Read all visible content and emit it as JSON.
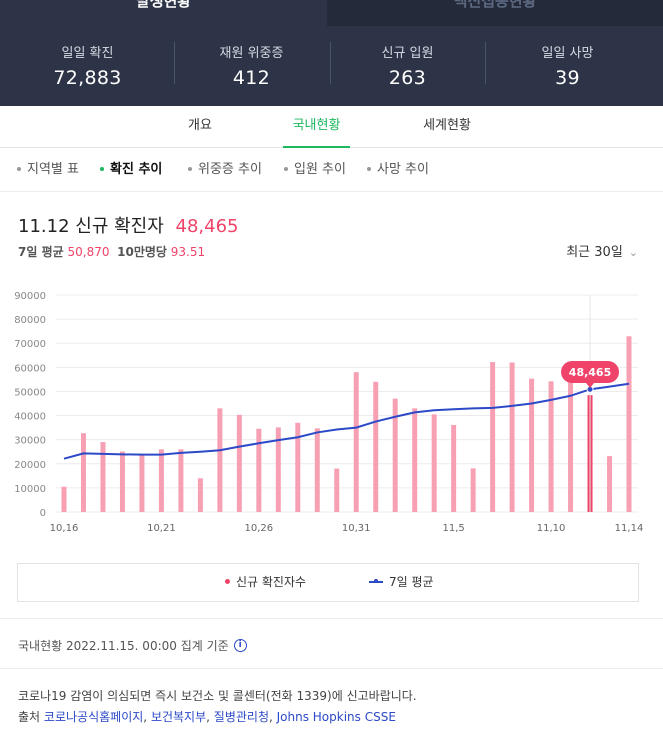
{
  "top_tabs": [
    "발생현황",
    "백신접종현황"
  ],
  "stats": [
    {
      "label": "일일 확진",
      "value": "72,883"
    },
    {
      "label": "재원 위중증",
      "value": "412"
    },
    {
      "label": "신규 입원",
      "value": "263"
    },
    {
      "label": "일일 사망",
      "value": "39"
    }
  ],
  "tabs": [
    "개요",
    "국내현황",
    "세계현황"
  ],
  "active_tab": "국내현황",
  "subtabs": [
    "지역별 표",
    "확진 추이",
    "위중증 추이",
    "입원 추이",
    "사망 추이"
  ],
  "active_subtab": "확진 추이",
  "headline": {
    "date": "11.12",
    "label": "신규 확진자",
    "value": "48,465"
  },
  "subline": {
    "avg_label": "7일 평균",
    "avg_value": "50,870",
    "per_label": "10만명당",
    "per_value": "93.51"
  },
  "period": "최근 30일",
  "legend": {
    "bar": "신규 확진자수",
    "line": "7일 평균"
  },
  "basis": "국내현황 2022.11.15. 00:00 집계 기준",
  "note": "코로나19 감염이 의심되면 즉시 보건소 및 콜센터(전화 1339)에 신고바랍니다.",
  "source": {
    "prefix": "출처",
    "links": [
      "코로나공식홈페이지",
      "보건복지부",
      "질병관리청",
      "Johns Hopkins CSSE"
    ]
  },
  "colors": {
    "bar": "#f7a0b4",
    "bar_selected": "#f0436a",
    "line": "#2c49c8",
    "accent": "#1db85f",
    "header_bg": "#2d3447"
  },
  "chart_data": {
    "type": "bar",
    "categories": [
      "10.16",
      "10.17",
      "10.18",
      "10.19",
      "10.20",
      "10.21",
      "10.22",
      "10.23",
      "10.24",
      "10.25",
      "10.26",
      "10.27",
      "10.28",
      "10.29",
      "10.30",
      "10.31",
      "11.1",
      "11.2",
      "11.3",
      "11.4",
      "11.5",
      "11.6",
      "11.7",
      "11.8",
      "11.9",
      "11.10",
      "11.11",
      "11.12",
      "11.13",
      "11.14"
    ],
    "tick_labels": [
      "10.16",
      "10.21",
      "10.26",
      "10.31",
      "11.5",
      "11.10",
      "11.14"
    ],
    "series": [
      {
        "name": "신규 확진자수",
        "type": "bar",
        "values": [
          10500,
          32700,
          29000,
          25100,
          24200,
          26000,
          26000,
          14000,
          43000,
          40300,
          34500,
          35100,
          37000,
          34700,
          18000,
          58000,
          54000,
          47000,
          43000,
          40500,
          36100,
          18100,
          62200,
          62000,
          55300,
          54200,
          55000,
          48465,
          23200,
          72883
        ]
      },
      {
        "name": "7일 평균",
        "type": "line",
        "values": [
          22100,
          24300,
          24100,
          23900,
          23800,
          23800,
          24500,
          25000,
          25600,
          27100,
          28500,
          29800,
          31000,
          33000,
          34200,
          35000,
          37500,
          39500,
          41300,
          42200,
          42600,
          43000,
          43200,
          44000,
          45000,
          46500,
          48200,
          50870,
          52000,
          53200
        ]
      }
    ],
    "highlight": {
      "index": 27,
      "label": "48,465"
    },
    "y_ticks": [
      0,
      10000,
      20000,
      30000,
      40000,
      50000,
      60000,
      70000,
      80000,
      90000
    ],
    "ylim": [
      0,
      90000
    ],
    "grid": true
  }
}
